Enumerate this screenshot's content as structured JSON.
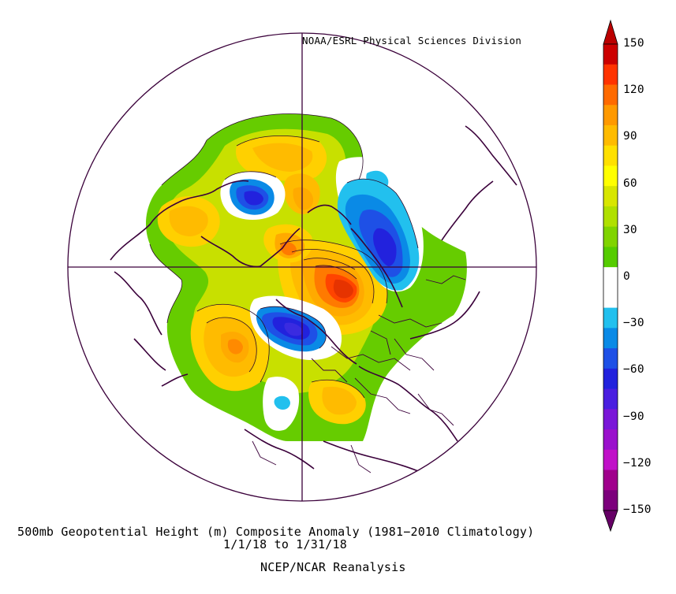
{
  "credit": "NOAA/ESRL Physical Sciences Division",
  "title": "500mb Geopotential Height (m) Composite Anomaly (1981−2010 Climatology)",
  "date_range": "1/1/18  to 1/31/18",
  "source": "NCEP/NCAR Reanalysis",
  "colorbar": {
    "labels": [
      "150",
      "120",
      "90",
      "60",
      "30",
      "0",
      "−30",
      "−60",
      "−90",
      "−120",
      "−150"
    ],
    "colors": [
      "#cc0000",
      "#ff3300",
      "#ff6a00",
      "#ff9900",
      "#ffbb00",
      "#ffe000",
      "#ffff00",
      "#d8e600",
      "#b0e000",
      "#80d400",
      "#55cc00",
      "#ffffff",
      "#ffffff",
      "#22c0ee",
      "#0a8ae6",
      "#1e50e6",
      "#2222dd",
      "#4a1ee0",
      "#7a16d8",
      "#9a10cc",
      "#c010c8",
      "#a0008c",
      "#7c007c"
    ],
    "top_color": "#bb0000",
    "bottom_color": "#660066"
  },
  "anomaly_centers": [
    {
      "value": 140,
      "color": "#e63300"
    },
    {
      "value": 120,
      "color": "#ff7a00"
    },
    {
      "value": 90,
      "color": "#ffaa00"
    },
    {
      "value": 80,
      "color": "#ffbb00"
    },
    {
      "value": 70,
      "color": "#ffd000"
    },
    {
      "value": 60,
      "color": "#e6d200"
    },
    {
      "value": 50,
      "color": "#c8e000"
    },
    {
      "value": 30,
      "color": "#66cc00"
    },
    {
      "value": -60,
      "color": "#2233dd"
    },
    {
      "value": -70,
      "color": "#3a2be0"
    },
    {
      "value": -45,
      "color": "#1e6ae6"
    },
    {
      "value": -30,
      "color": "#22c0ee"
    }
  ]
}
